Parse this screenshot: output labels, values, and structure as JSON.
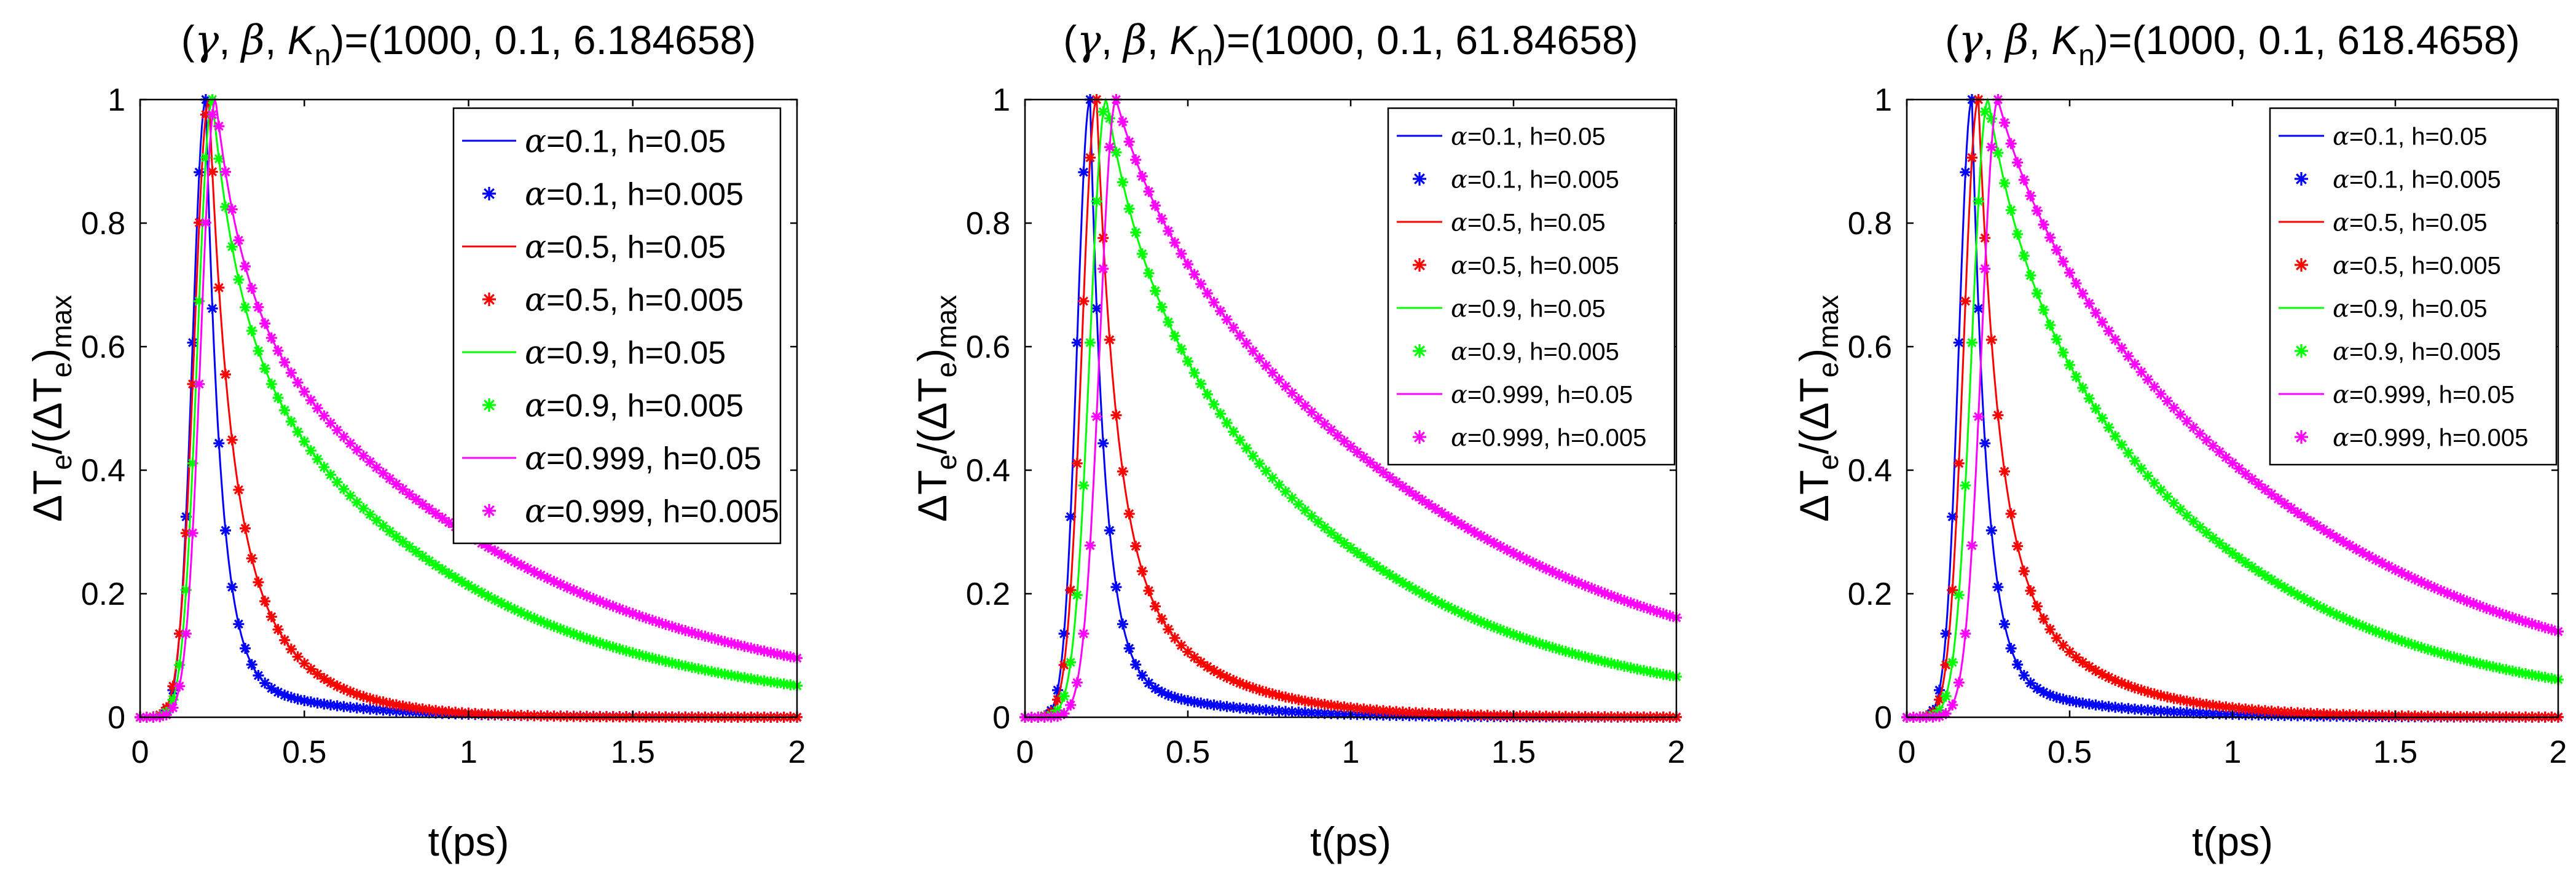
{
  "chart_data": [
    {
      "type": "line",
      "title": "(γ, β,  K_n)=(1000, 0.1, 6.184658)",
      "title_parts": {
        "lead": "(",
        "gamma": "γ",
        "sep1": ", ",
        "beta": "β",
        "sep2": ",  ",
        "k": "K",
        "k_sub": "n",
        "values": ")=(1000, 0.1, 6.184658)"
      },
      "xlabel": "t(ps)",
      "ylabel": {
        "delta1": "Δ",
        "t1": "T",
        "sub1": "e",
        "mid": "/(",
        "delta2": "Δ",
        "t2": "T",
        "sub2": "e",
        "close": ")",
        "sub3": "max"
      },
      "xlim": [
        0,
        2
      ],
      "ylim": [
        0,
        1
      ],
      "xticks": [
        "0",
        "0.5",
        "1",
        "1.5",
        "2"
      ],
      "yticks": [
        "0",
        "0.2",
        "0.4",
        "0.6",
        "0.8",
        "1"
      ],
      "legend_position": "top-right",
      "curves": [
        {
          "alpha": 0.1,
          "color": "#0000ff",
          "peak_t": 0.2,
          "rise_width": 0.04,
          "decay": [
            {
              "w": 0.93,
              "tau": 0.045
            },
            {
              "w": 0.07,
              "tau": 0.3
            }
          ]
        },
        {
          "alpha": 0.5,
          "color": "#ff0000",
          "peak_t": 0.21,
          "rise_width": 0.045,
          "decay": [
            {
              "w": 0.65,
              "tau": 0.06
            },
            {
              "w": 0.35,
              "tau": 0.2
            }
          ]
        },
        {
          "alpha": 0.9,
          "color": "#00ff00",
          "peak_t": 0.22,
          "rise_width": 0.045,
          "decay": [
            {
              "w": 0.35,
              "tau": 0.08
            },
            {
              "w": 0.65,
              "tau": 0.7
            }
          ]
        },
        {
          "alpha": 0.999,
          "color": "#ff00ff",
          "peak_t": 0.23,
          "rise_width": 0.045,
          "decay": [
            {
              "w": 0.3,
              "tau": 0.08
            },
            {
              "w": 0.7,
              "tau": 0.89
            }
          ]
        }
      ],
      "legend": [
        {
          "label": "=0.1, h=0.05",
          "color": "#0000ff",
          "marker": "line"
        },
        {
          "label": "=0.1, h=0.005",
          "color": "#0000ff",
          "marker": "star"
        },
        {
          "label": "=0.5, h=0.05",
          "color": "#ff0000",
          "marker": "line"
        },
        {
          "label": "=0.5, h=0.005",
          "color": "#ff0000",
          "marker": "star"
        },
        {
          "label": "=0.9, h=0.05",
          "color": "#00ff00",
          "marker": "line"
        },
        {
          "label": "=0.9, h=0.005",
          "color": "#00ff00",
          "marker": "star"
        },
        {
          "label": "=0.999, h=0.05",
          "color": "#ff00ff",
          "marker": "line"
        },
        {
          "label": "=0.999, h=0.005",
          "color": "#ff00ff",
          "marker": "star"
        }
      ]
    },
    {
      "type": "line",
      "title": "(γ, β,  K_n)=(1000, 0.1, 61.84658)",
      "title_parts": {
        "lead": "(",
        "gamma": "γ",
        "sep1": ", ",
        "beta": "β",
        "sep2": ",  ",
        "k": "K",
        "k_sub": "n",
        "values": ")=(1000, 0.1, 61.84658)"
      },
      "xlabel": "t(ps)",
      "ylabel": {
        "delta1": "Δ",
        "t1": "T",
        "sub1": "e",
        "mid": "/(",
        "delta2": "Δ",
        "t2": "T",
        "sub2": "e",
        "close": ")",
        "sub3": "max"
      },
      "xlim": [
        0,
        2
      ],
      "ylim": [
        0,
        1
      ],
      "xticks": [
        "0",
        "0.5",
        "1",
        "1.5",
        "2"
      ],
      "yticks": [
        "0",
        "0.2",
        "0.4",
        "0.6",
        "0.8",
        "1"
      ],
      "legend_position": "top-right",
      "curves": [
        {
          "alpha": 0.1,
          "color": "#0000ff",
          "peak_t": 0.2,
          "rise_width": 0.04,
          "decay": [
            {
              "w": 0.93,
              "tau": 0.045
            },
            {
              "w": 0.07,
              "tau": 0.3
            }
          ]
        },
        {
          "alpha": 0.5,
          "color": "#ff0000",
          "peak_t": 0.22,
          "rise_width": 0.045,
          "decay": [
            {
              "w": 0.72,
              "tau": 0.06
            },
            {
              "w": 0.28,
              "tau": 0.27
            }
          ]
        },
        {
          "alpha": 0.9,
          "color": "#00ff00",
          "peak_t": 0.25,
          "rise_width": 0.05,
          "decay": [
            {
              "w": 0.2,
              "tau": 0.1
            },
            {
              "w": 0.8,
              "tau": 0.7
            }
          ]
        },
        {
          "alpha": 0.999,
          "color": "#ff00ff",
          "peak_t": 0.28,
          "rise_width": 0.05,
          "decay": [
            {
              "w": 0.1,
              "tau": 0.1
            },
            {
              "w": 0.9,
              "tau": 1.0
            }
          ]
        }
      ],
      "legend": [
        {
          "label": "=0.1, h=0.05",
          "color": "#0000ff",
          "marker": "line"
        },
        {
          "label": "=0.1, h=0.005",
          "color": "#0000ff",
          "marker": "star"
        },
        {
          "label": "=0.5, h=0.05",
          "color": "#ff0000",
          "marker": "line"
        },
        {
          "label": "=0.5, h=0.005",
          "color": "#ff0000",
          "marker": "star"
        },
        {
          "label": "=0.9, h=0.05",
          "color": "#00ff00",
          "marker": "line"
        },
        {
          "label": "=0.9, h=0.005",
          "color": "#00ff00",
          "marker": "star"
        },
        {
          "label": "=0.999, h=0.05",
          "color": "#ff00ff",
          "marker": "line"
        },
        {
          "label": "=0.999, h=0.005",
          "color": "#ff00ff",
          "marker": "star"
        }
      ]
    },
    {
      "type": "line",
      "title": "(γ, β,  K_n)=(1000, 0.1, 618.4658)",
      "title_parts": {
        "lead": "(",
        "gamma": "γ",
        "sep1": ", ",
        "beta": "β",
        "sep2": ",  ",
        "k": "K",
        "k_sub": "n",
        "values": ")=(1000, 0.1, 618.4658)"
      },
      "xlabel": "t(ps)",
      "ylabel": {
        "delta1": "Δ",
        "t1": "T",
        "sub1": "e",
        "mid": "/(",
        "delta2": "Δ",
        "t2": "T",
        "sub2": "e",
        "close": ")",
        "sub3": "max"
      },
      "xlim": [
        0,
        2
      ],
      "ylim": [
        0,
        1
      ],
      "xticks": [
        "0",
        "0.5",
        "1",
        "1.5",
        "2"
      ],
      "yticks": [
        "0",
        "0.2",
        "0.4",
        "0.6",
        "0.8",
        "1"
      ],
      "legend_position": "top-right",
      "curves": [
        {
          "alpha": 0.1,
          "color": "#0000ff",
          "peak_t": 0.2,
          "rise_width": 0.04,
          "decay": [
            {
              "w": 0.93,
              "tau": 0.045
            },
            {
              "w": 0.07,
              "tau": 0.3
            }
          ]
        },
        {
          "alpha": 0.5,
          "color": "#ff0000",
          "peak_t": 0.22,
          "rise_width": 0.045,
          "decay": [
            {
              "w": 0.72,
              "tau": 0.06
            },
            {
              "w": 0.28,
              "tau": 0.27
            }
          ]
        },
        {
          "alpha": 0.9,
          "color": "#00ff00",
          "peak_t": 0.25,
          "rise_width": 0.05,
          "decay": [
            {
              "w": 0.2,
              "tau": 0.1
            },
            {
              "w": 0.8,
              "tau": 0.68
            }
          ]
        },
        {
          "alpha": 0.999,
          "color": "#ff00ff",
          "peak_t": 0.28,
          "rise_width": 0.05,
          "decay": [
            {
              "w": 0.1,
              "tau": 0.1
            },
            {
              "w": 0.9,
              "tau": 0.92
            }
          ]
        }
      ],
      "legend": [
        {
          "label": "=0.1, h=0.05",
          "color": "#0000ff",
          "marker": "line"
        },
        {
          "label": "=0.1, h=0.005",
          "color": "#0000ff",
          "marker": "star"
        },
        {
          "label": "=0.5, h=0.05",
          "color": "#ff0000",
          "marker": "line"
        },
        {
          "label": "=0.5, h=0.005",
          "color": "#ff0000",
          "marker": "star"
        },
        {
          "label": "=0.9, h=0.05",
          "color": "#00ff00",
          "marker": "line"
        },
        {
          "label": "=0.9, h=0.005",
          "color": "#00ff00",
          "marker": "star"
        },
        {
          "label": "=0.999, h=0.05",
          "color": "#ff00ff",
          "marker": "line"
        },
        {
          "label": "=0.999, h=0.005",
          "color": "#ff00ff",
          "marker": "star"
        }
      ]
    }
  ]
}
